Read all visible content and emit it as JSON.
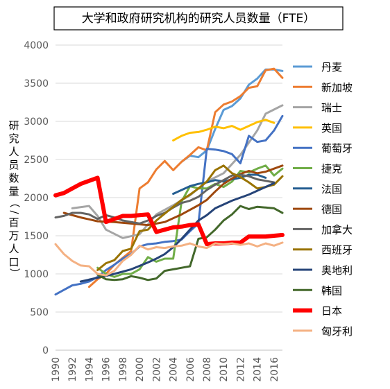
{
  "chart_data": {
    "type": "line",
    "title": "大学和政府研究机构的研究人员数量（FTE）",
    "ylabel": "研究人员数量（/百万人口）",
    "xlabel": "",
    "ylim": [
      0,
      4000
    ],
    "xlim": [
      1990,
      2017
    ],
    "yticks": [
      0,
      500,
      1000,
      1500,
      2000,
      2500,
      3000,
      3500,
      4000
    ],
    "xticks": [
      1990,
      1992,
      1994,
      1996,
      1998,
      2000,
      2002,
      2004,
      2006,
      2008,
      2010,
      2012,
      2014,
      2016
    ],
    "grid": "horizontal",
    "legend_position": "right",
    "series": [
      {
        "name": "丹麦",
        "color": "#5b9bd5",
        "width": 3,
        "x": [
          2005,
          2006,
          2007,
          2008,
          2009,
          2010,
          2011,
          2012,
          2013,
          2014,
          2015,
          2016,
          2017
        ],
        "y": [
          2470,
          2550,
          2530,
          2620,
          2900,
          3150,
          3200,
          3300,
          3480,
          3560,
          3680,
          3680,
          3660
        ]
      },
      {
        "name": "新加坡",
        "color": "#ed7d31",
        "width": 3,
        "x": [
          1994,
          1995,
          1996,
          1997,
          1998,
          1999,
          2000,
          2001,
          2002,
          2003,
          2004,
          2005,
          2006,
          2007,
          2008,
          2009,
          2010,
          2011,
          2012,
          2013,
          2014,
          2015,
          2016,
          2017
        ],
        "y": [
          830,
          930,
          1000,
          1120,
          1210,
          1300,
          2120,
          2200,
          2370,
          2480,
          2360,
          2470,
          2560,
          2660,
          2620,
          3120,
          3220,
          3260,
          3330,
          3440,
          3460,
          3670,
          3690,
          3570
        ]
      },
      {
        "name": "瑞士",
        "color": "#a5a5a5",
        "width": 3,
        "x": [
          1992,
          1994,
          1995,
          1996,
          1998,
          2000,
          2002,
          2004,
          2006,
          2008,
          2010,
          2012,
          2014,
          2015,
          2017
        ],
        "y": [
          1860,
          1890,
          1760,
          1580,
          1470,
          1520,
          1780,
          1900,
          2030,
          2210,
          2320,
          2560,
          2880,
          3100,
          3210
        ]
      },
      {
        "name": "英国",
        "color": "#ffc000",
        "width": 3,
        "x": [
          2004,
          2005,
          2006,
          2007,
          2008,
          2009,
          2010,
          2011,
          2012,
          2013,
          2014,
          2015,
          2016
        ],
        "y": [
          2750,
          2810,
          2850,
          2860,
          2890,
          2930,
          2910,
          2940,
          2890,
          2940,
          2990,
          3020,
          2980
        ]
      },
      {
        "name": "葡萄牙",
        "color": "#4472c4",
        "width": 3,
        "x": [
          1990,
          1991,
          1992,
          1993,
          1994,
          1995,
          1996,
          1997,
          1998,
          1999,
          2000,
          2001,
          2002,
          2003,
          2004,
          2005,
          2006,
          2007,
          2008,
          2009,
          2010,
          2011,
          2012,
          2013,
          2014,
          2015,
          2016,
          2017
        ],
        "y": [
          730,
          790,
          850,
          870,
          900,
          960,
          1050,
          1120,
          1200,
          1260,
          1360,
          1390,
          1400,
          1420,
          1430,
          1450,
          1560,
          1660,
          2640,
          2630,
          2610,
          2570,
          2450,
          2810,
          2730,
          2750,
          2880,
          3070
        ]
      },
      {
        "name": "捷克",
        "color": "#70ad47",
        "width": 3,
        "x": [
          1995,
          1996,
          1997,
          1998,
          1999,
          2000,
          2001,
          2002,
          2003,
          2004,
          2005,
          2006,
          2007,
          2008,
          2009,
          2010,
          2011,
          2012,
          2013,
          2014,
          2015,
          2016,
          2017
        ],
        "y": [
          1080,
          1000,
          960,
          1000,
          1000,
          1060,
          1220,
          1160,
          1200,
          1200,
          1950,
          2150,
          2120,
          2120,
          2180,
          2140,
          2210,
          2350,
          2330,
          2380,
          2420,
          2290,
          2380
        ]
      },
      {
        "name": "法国",
        "color": "#255e91",
        "width": 3,
        "x": [
          2004,
          2005,
          2006,
          2007,
          2008,
          2009,
          2010,
          2011,
          2012,
          2013,
          2014,
          2015
        ],
        "y": [
          2050,
          2100,
          2150,
          2180,
          2200,
          2230,
          2210,
          2240,
          2260,
          2300,
          2300,
          2260
        ]
      },
      {
        "name": "德国",
        "color": "#9e480e",
        "width": 3,
        "x": [
          1991,
          1993,
          1995,
          1997,
          1999,
          2001,
          2003,
          2005,
          2007,
          2008,
          2009,
          2010,
          2011,
          2012,
          2013,
          2014,
          2015,
          2016,
          2017
        ],
        "y": [
          1800,
          1740,
          1690,
          1680,
          1660,
          1640,
          1680,
          1780,
          1900,
          1970,
          2080,
          2180,
          2250,
          2310,
          2350,
          2320,
          2340,
          2380,
          2420
        ]
      },
      {
        "name": "加拿大",
        "color": "#636363",
        "width": 3,
        "x": [
          1990,
          1991,
          1992,
          1993,
          1994,
          1995,
          1996,
          1997,
          1998,
          1999,
          2000,
          2001,
          2002,
          2003,
          2004,
          2005,
          2006,
          2007,
          2008,
          2009,
          2010,
          2011,
          2012,
          2013,
          2014,
          2015,
          2016
        ],
        "y": [
          1740,
          1760,
          1800,
          1800,
          1780,
          1720,
          1770,
          1740,
          1700,
          1680,
          1660,
          1700,
          1760,
          1800,
          1870,
          1930,
          1960,
          2010,
          2100,
          2170,
          2230,
          2290,
          2300,
          2280,
          2240,
          2220,
          2200
        ]
      },
      {
        "name": "西班牙",
        "color": "#997300",
        "width": 3,
        "x": [
          1995,
          1996,
          1997,
          1998,
          1999,
          2000,
          2001,
          2002,
          2003,
          2004,
          2005,
          2006,
          2007,
          2008,
          2009,
          2010,
          2011,
          2012,
          2013,
          2014,
          2015,
          2016,
          2017
        ],
        "y": [
          1050,
          1140,
          1180,
          1300,
          1330,
          1560,
          1580,
          1700,
          1790,
          1880,
          1970,
          2040,
          2120,
          2210,
          2360,
          2420,
          2320,
          2270,
          2200,
          2120,
          2140,
          2170,
          2280
        ]
      },
      {
        "name": "奥地利",
        "color": "#264478",
        "width": 3,
        "x": [
          1993,
          1995,
          1997,
          1999,
          2001,
          2002,
          2003,
          2004,
          2005,
          2006,
          2007,
          2008,
          2009,
          2011,
          2013,
          2015,
          2016
        ],
        "y": [
          900,
          950,
          1000,
          1060,
          1150,
          1200,
          1260,
          1350,
          1460,
          1580,
          1700,
          1770,
          1860,
          1960,
          2040,
          2140,
          2190
        ]
      },
      {
        "name": "韩国",
        "color": "#43682b",
        "width": 3,
        "x": [
          1995,
          1996,
          1997,
          1998,
          1999,
          2000,
          2001,
          2002,
          2003,
          2004,
          2005,
          2006,
          2007,
          2008,
          2009,
          2010,
          2011,
          2012,
          2013,
          2014,
          2015,
          2016,
          2017
        ],
        "y": [
          990,
          930,
          920,
          930,
          970,
          950,
          920,
          940,
          1040,
          1060,
          1080,
          1100,
          1460,
          1480,
          1580,
          1700,
          1780,
          1890,
          1850,
          1880,
          1870,
          1860,
          1800
        ]
      },
      {
        "name": "日本",
        "color": "#ff0000",
        "width": 6,
        "x": [
          1990,
          1991,
          1992,
          1993,
          1994,
          1995,
          1996,
          1997,
          1998,
          1999,
          2000,
          2001,
          2002,
          2003,
          2004,
          2005,
          2006,
          2007,
          2008,
          2009,
          2010,
          2011,
          2012,
          2013,
          2014,
          2015,
          2016,
          2017
        ],
        "y": [
          2030,
          2060,
          2120,
          2180,
          2220,
          2260,
          1680,
          1720,
          1760,
          1760,
          1770,
          1780,
          1550,
          1580,
          1610,
          1620,
          1640,
          1650,
          1390,
          1400,
          1400,
          1410,
          1410,
          1490,
          1490,
          1490,
          1500,
          1510
        ]
      },
      {
        "name": "匈牙利",
        "color": "#f4b183",
        "width": 3,
        "x": [
          1990,
          1991,
          1992,
          1993,
          1994,
          1995,
          1996,
          1997,
          1998,
          1999,
          2000,
          2001,
          2002,
          2003,
          2004,
          2005,
          2006,
          2007,
          2008,
          2009,
          2010,
          2011,
          2012,
          2013,
          2014,
          2015,
          2016,
          2017
        ],
        "y": [
          1390,
          1260,
          1170,
          1110,
          1100,
          1000,
          980,
          1040,
          1170,
          1250,
          1370,
          1320,
          1350,
          1340,
          1360,
          1370,
          1400,
          1360,
          1340,
          1400,
          1390,
          1400,
          1380,
          1400,
          1360,
          1400,
          1370,
          1410
        ]
      }
    ]
  }
}
